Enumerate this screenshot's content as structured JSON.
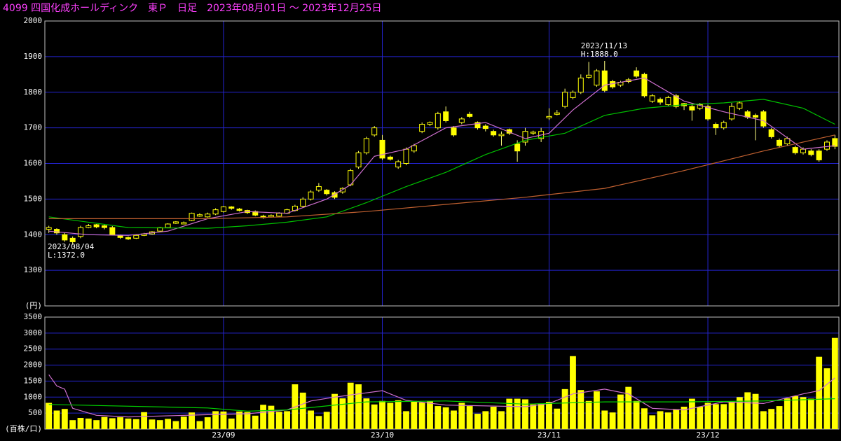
{
  "chart_data": [
    {
      "type": "candlestick",
      "title": "4099 四国化成ホールディンク　東Ｐ　日足　2023年08月01日 ～ 2023年12月25日",
      "open": [
        1415,
        1415,
        1400,
        1390,
        1395,
        1420,
        1428,
        1425,
        1420,
        1398,
        1392,
        1390,
        1398,
        1402,
        1410,
        1420,
        1432,
        1430,
        1440,
        1452,
        1450,
        1458,
        1465,
        1478,
        1472,
        1468,
        1465,
        1452,
        1450,
        1452,
        1460,
        1468,
        1480,
        1500,
        1525,
        1525,
        1518,
        1520,
        1540,
        1590,
        1630,
        1680,
        1665,
        1618,
        1590,
        1600,
        1635,
        1690,
        1710,
        1700,
        1745,
        1700,
        1715,
        1738,
        1715,
        1705,
        1690,
        1678,
        1695,
        1655,
        1660,
        1685,
        1670,
        1728,
        1738,
        1760,
        1785,
        1800,
        1842,
        1820,
        1860,
        1830,
        1820,
        1830,
        1860,
        1850,
        1775,
        1780,
        1765,
        1790,
        1768,
        1760,
        1755,
        1760,
        1710,
        1700,
        1725,
        1755,
        1745,
        1735,
        1745,
        1695,
        1665,
        1655,
        1645,
        1630,
        1635,
        1635,
        1640,
        1670
      ],
      "high": [
        1425,
        1418,
        1405,
        1395,
        1425,
        1430,
        1430,
        1428,
        1424,
        1400,
        1395,
        1400,
        1405,
        1410,
        1422,
        1432,
        1438,
        1437,
        1462,
        1460,
        1462,
        1474,
        1480,
        1480,
        1475,
        1470,
        1468,
        1456,
        1457,
        1463,
        1473,
        1484,
        1505,
        1525,
        1545,
        1528,
        1522,
        1533,
        1585,
        1635,
        1675,
        1705,
        1680,
        1622,
        1610,
        1645,
        1655,
        1715,
        1718,
        1745,
        1760,
        1705,
        1730,
        1745,
        1718,
        1710,
        1695,
        1690,
        1698,
        1665,
        1700,
        1692,
        1700,
        1755,
        1750,
        1810,
        1805,
        1850,
        1885,
        1865,
        1888,
        1835,
        1832,
        1840,
        1870,
        1855,
        1795,
        1785,
        1790,
        1795,
        1770,
        1770,
        1770,
        1765,
        1715,
        1720,
        1770,
        1775,
        1750,
        1740,
        1750,
        1700,
        1670,
        1675,
        1650,
        1645,
        1640,
        1640,
        1665,
        1680
      ],
      "low": [
        1405,
        1400,
        1380,
        1372,
        1390,
        1418,
        1418,
        1415,
        1398,
        1388,
        1385,
        1388,
        1396,
        1400,
        1408,
        1418,
        1430,
        1430,
        1438,
        1450,
        1448,
        1455,
        1462,
        1470,
        1465,
        1458,
        1452,
        1445,
        1448,
        1450,
        1458,
        1465,
        1476,
        1496,
        1520,
        1510,
        1500,
        1515,
        1536,
        1585,
        1625,
        1675,
        1610,
        1608,
        1585,
        1595,
        1630,
        1685,
        1705,
        1695,
        1715,
        1675,
        1710,
        1728,
        1695,
        1690,
        1675,
        1650,
        1680,
        1605,
        1650,
        1680,
        1660,
        1722,
        1735,
        1755,
        1780,
        1795,
        1838,
        1815,
        1800,
        1810,
        1815,
        1825,
        1840,
        1785,
        1770,
        1765,
        1760,
        1755,
        1750,
        1720,
        1750,
        1720,
        1680,
        1695,
        1720,
        1750,
        1725,
        1665,
        1700,
        1670,
        1645,
        1650,
        1625,
        1625,
        1620,
        1605,
        1635,
        1640
      ],
      "close": [
        1420,
        1405,
        1385,
        1380,
        1420,
        1425,
        1422,
        1420,
        1400,
        1392,
        1388,
        1398,
        1402,
        1408,
        1420,
        1430,
        1436,
        1434,
        1460,
        1456,
        1458,
        1470,
        1478,
        1474,
        1468,
        1462,
        1455,
        1448,
        1454,
        1460,
        1470,
        1480,
        1500,
        1520,
        1535,
        1515,
        1505,
        1530,
        1580,
        1630,
        1670,
        1700,
        1615,
        1612,
        1605,
        1640,
        1650,
        1710,
        1715,
        1740,
        1720,
        1680,
        1725,
        1732,
        1700,
        1698,
        1680,
        1682,
        1685,
        1635,
        1690,
        1688,
        1690,
        1732,
        1742,
        1800,
        1800,
        1840,
        1848,
        1860,
        1805,
        1815,
        1828,
        1835,
        1845,
        1790,
        1790,
        1772,
        1785,
        1760,
        1762,
        1750,
        1765,
        1725,
        1700,
        1715,
        1760,
        1770,
        1730,
        1730,
        1705,
        1675,
        1650,
        1670,
        1630,
        1640,
        1625,
        1610,
        1660,
        1648
      ],
      "series": [
        {
          "color": "#d070d0",
          "x": [
            0,
            5,
            10,
            15,
            20,
            25,
            30,
            35,
            38,
            41,
            45,
            50,
            55,
            60,
            63,
            66,
            70,
            75,
            80,
            85,
            90,
            95,
            99
          ],
          "values": [
            1410,
            1400,
            1398,
            1410,
            1445,
            1465,
            1460,
            1500,
            1540,
            1620,
            1640,
            1700,
            1715,
            1670,
            1685,
            1750,
            1820,
            1840,
            1775,
            1745,
            1720,
            1640,
            1650
          ]
        },
        {
          "color": "#00c000",
          "x": [
            0,
            10,
            20,
            25,
            30,
            35,
            40,
            45,
            50,
            55,
            60,
            65,
            70,
            75,
            80,
            85,
            90,
            95,
            99
          ],
          "values": [
            1450,
            1420,
            1418,
            1425,
            1435,
            1450,
            1490,
            1535,
            1575,
            1625,
            1665,
            1685,
            1735,
            1755,
            1765,
            1770,
            1780,
            1755,
            1710
          ]
        },
        {
          "color": "#c06030",
          "x": [
            0,
            20,
            30,
            40,
            50,
            60,
            70,
            80,
            90,
            99
          ],
          "values": [
            1445,
            1445,
            1450,
            1465,
            1485,
            1505,
            1530,
            1580,
            1635,
            1680
          ]
        }
      ],
      "annotations": [
        [
          "2023/11/13",
          "H:1888.0"
        ],
        [
          "2023/08/04",
          "L:1372.0"
        ]
      ],
      "ylim": [
        1200,
        2000
      ],
      "yticks": [
        {
          "value": 1200,
          "label": "(円)"
        },
        1300,
        1400,
        1500,
        1600,
        1700,
        1800,
        1900,
        2000
      ],
      "grid": true
    },
    {
      "type": "bar",
      "categories": [
        null,
        null,
        null,
        null,
        null,
        null,
        null,
        null,
        null,
        null,
        null,
        null,
        null,
        null,
        null,
        null,
        null,
        null,
        null,
        null,
        null,
        null,
        "23/09",
        null,
        null,
        null,
        null,
        null,
        null,
        null,
        null,
        null,
        null,
        null,
        null,
        null,
        null,
        null,
        null,
        null,
        null,
        null,
        "23/10",
        null,
        null,
        null,
        null,
        null,
        null,
        null,
        null,
        null,
        null,
        null,
        null,
        null,
        null,
        null,
        null,
        null,
        null,
        null,
        null,
        "23/11",
        null,
        null,
        null,
        null,
        null,
        null,
        null,
        null,
        null,
        null,
        null,
        null,
        null,
        null,
        null,
        null,
        null,
        null,
        null,
        "23/12",
        null,
        null,
        null,
        null,
        null,
        null,
        null,
        null,
        null,
        null,
        null,
        null,
        null,
        null,
        null,
        null
      ],
      "values": [
        820,
        580,
        630,
        280,
        350,
        330,
        280,
        380,
        340,
        370,
        330,
        310,
        530,
        300,
        280,
        320,
        250,
        390,
        520,
        250,
        370,
        560,
        550,
        330,
        550,
        530,
        420,
        760,
        730,
        540,
        560,
        1400,
        1140,
        580,
        410,
        540,
        1100,
        960,
        1450,
        1400,
        960,
        770,
        880,
        820,
        900,
        560,
        880,
        830,
        880,
        720,
        680,
        580,
        820,
        720,
        480,
        560,
        700,
        560,
        950,
        950,
        930,
        770,
        800,
        850,
        640,
        1250,
        2280,
        1220,
        880,
        1180,
        580,
        520,
        1080,
        1320,
        880,
        650,
        430,
        560,
        520,
        620,
        700,
        950,
        700,
        820,
        780,
        780,
        860,
        1000,
        1150,
        1100,
        560,
        630,
        720,
        960,
        1030,
        1000,
        950,
        2260,
        1900,
        2850
      ],
      "color": "#ffff00",
      "series": [
        {
          "color": "#d070d0",
          "x": [
            0,
            1,
            2,
            3,
            6,
            10,
            20,
            25,
            30,
            33,
            36,
            42,
            45,
            50,
            60,
            63,
            66,
            70,
            73,
            76,
            80,
            85,
            90,
            95,
            97,
            99
          ],
          "values": [
            1700,
            1350,
            1250,
            650,
            430,
            380,
            450,
            480,
            600,
            880,
            1000,
            1200,
            900,
            750,
            700,
            800,
            1100,
            1250,
            1100,
            650,
            600,
            850,
            800,
            1100,
            1200,
            1600
          ]
        },
        {
          "color": "#00d000",
          "x": [
            0,
            20,
            25,
            30,
            40,
            50,
            60,
            70,
            80,
            90,
            99
          ],
          "values": [
            770,
            660,
            560,
            600,
            850,
            880,
            780,
            850,
            850,
            880,
            950
          ]
        }
      ],
      "ylim": [
        0,
        3500
      ],
      "yticks": [
        {
          "value": 0,
          "label": "(百株/口)"
        },
        500,
        1000,
        1500,
        2000,
        2500,
        3000,
        3500
      ],
      "grid": true
    }
  ]
}
